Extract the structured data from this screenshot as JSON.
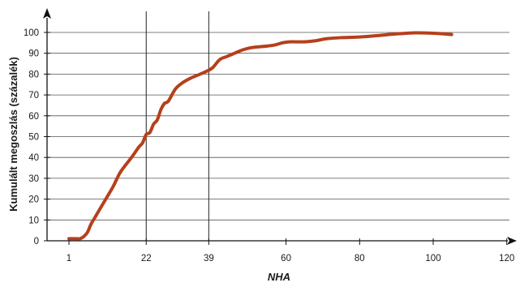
{
  "chart_data": {
    "type": "line",
    "title": "",
    "xlabel": "NHA",
    "ylabel": "Kumulált megoszlás (százalék)",
    "x_ticks": [
      1,
      22,
      39,
      60,
      80,
      100,
      120
    ],
    "y_ticks": [
      0,
      10,
      20,
      30,
      40,
      50,
      60,
      70,
      80,
      90,
      100
    ],
    "xlim": [
      -5,
      125
    ],
    "ylim": [
      0,
      100
    ],
    "grid": "horizontal",
    "reference_lines_x": [
      22,
      39
    ],
    "line_color": "#b5401c",
    "series": [
      {
        "x": [
          1,
          3,
          4,
          5,
          6,
          7,
          8,
          9,
          11,
          13,
          15,
          18,
          20,
          21,
          22,
          23,
          24,
          25,
          26,
          27,
          28,
          30,
          32,
          34,
          36,
          38,
          40,
          42,
          44,
          46,
          48,
          50,
          52,
          55,
          57,
          59,
          61,
          65,
          68,
          71,
          75,
          80,
          85,
          90,
          95,
          100,
          105
        ],
        "y": [
          1,
          1,
          1,
          2,
          4,
          8,
          11,
          14,
          20,
          26,
          33,
          40,
          45,
          47,
          51,
          52,
          56,
          58,
          63,
          66,
          67,
          73,
          76,
          78,
          79.5,
          81,
          83,
          87,
          88.5,
          90,
          91.5,
          92.5,
          93,
          93.5,
          94,
          95,
          95.5,
          95.5,
          96,
          97,
          97.5,
          97.8,
          98.5,
          99.3,
          99.8,
          99.6,
          99
        ]
      }
    ]
  }
}
